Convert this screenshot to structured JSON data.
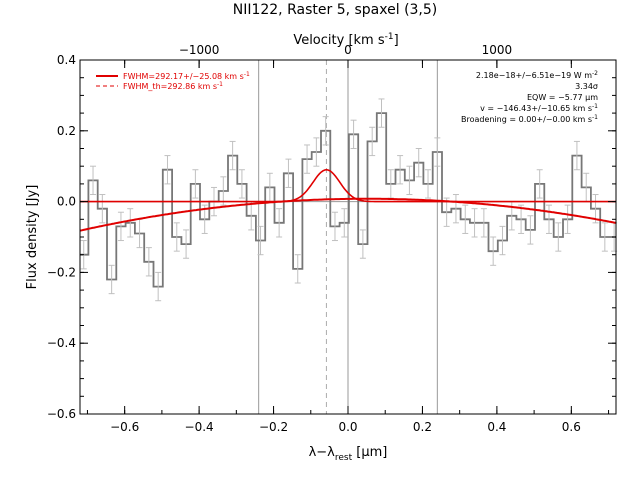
{
  "chart_data": {
    "type": "line",
    "title": "NII122, Raster 5, spaxel (3,5)",
    "xlabel_base": "λ−λ",
    "xlabel_sub": "rest",
    "xlabel_unit_open": " [",
    "xlabel_unit_mu": "μ",
    "xlabel_unit_close": "m]",
    "ylabel": "Flux density [Jy]",
    "x2label_text": "Velocity [km s",
    "x2label_sup": "-1",
    "x2label_close": "]",
    "xlim": [
      -0.72,
      0.72
    ],
    "ylim": [
      -0.6,
      0.4
    ],
    "x2lim": [
      -1800,
      1800
    ],
    "xticks": [
      -0.6,
      -0.4,
      -0.2,
      0.0,
      0.2,
      0.4,
      0.6
    ],
    "xtick_labels": [
      "−0.6",
      "−0.4",
      "−0.2",
      "0.0",
      "0.2",
      "0.4",
      "0.6"
    ],
    "yticks": [
      -0.6,
      -0.4,
      -0.2,
      0.0,
      0.2,
      0.4
    ],
    "ytick_labels": [
      "−0.6",
      "−0.4",
      "−0.2",
      "0.0",
      "0.2",
      "0.4"
    ],
    "x2ticks": [
      -1000,
      0,
      1000
    ],
    "x2tick_labels": [
      "−1000",
      "0",
      "1000"
    ],
    "legend": {
      "placement": "top-left",
      "entries": [
        {
          "text": "FWHM=292.17+/−25.08 km s",
          "sup": "-1",
          "style": "solid",
          "color": "#e00000"
        },
        {
          "text": "FWHM_th=292.86 km s",
          "sup": "-1",
          "style": "dashed",
          "color": "#e00000"
        }
      ]
    },
    "annotations": [
      {
        "text": "2.18e−18+/−6.51e−19 W m",
        "sup": "-2"
      },
      {
        "text": "3.34σ",
        "sup": ""
      },
      {
        "text": "EQW = −5.77 μm",
        "sup": ""
      },
      {
        "text": "v = −146.43+/−10.65 km s",
        "sup": "-1"
      },
      {
        "text": "Broadening = 0.00+/−0.00 km s",
        "sup": "-1"
      }
    ],
    "vlines": [
      {
        "x": -0.24,
        "style": "solid",
        "color": "#999999"
      },
      {
        "x": 0.0,
        "style": "solid",
        "color": "#999999"
      },
      {
        "x": 0.24,
        "style": "solid",
        "color": "#999999"
      },
      {
        "x": -0.058,
        "style": "dashed",
        "color": "#aaaaaa"
      }
    ],
    "hline": {
      "y": 0.0,
      "color": "#999999"
    },
    "series": [
      {
        "kind": "step",
        "color": "#777777",
        "x": [
          -0.71,
          -0.685,
          -0.66,
          -0.635,
          -0.61,
          -0.585,
          -0.56,
          -0.535,
          -0.51,
          -0.485,
          -0.46,
          -0.435,
          -0.41,
          -0.385,
          -0.36,
          -0.335,
          -0.31,
          -0.285,
          -0.26,
          -0.235,
          -0.21,
          -0.185,
          -0.16,
          -0.135,
          -0.11,
          -0.085,
          -0.06,
          -0.035,
          -0.01,
          0.015,
          0.04,
          0.065,
          0.09,
          0.115,
          0.14,
          0.165,
          0.19,
          0.215,
          0.24,
          0.265,
          0.29,
          0.315,
          0.34,
          0.365,
          0.39,
          0.415,
          0.44,
          0.465,
          0.49,
          0.515,
          0.54,
          0.565,
          0.59,
          0.615,
          0.64,
          0.665,
          0.69,
          0.715
        ],
        "y": [
          -0.15,
          0.06,
          -0.02,
          -0.22,
          -0.07,
          -0.06,
          -0.09,
          -0.17,
          -0.24,
          0.09,
          -0.1,
          -0.12,
          0.05,
          -0.05,
          0.0,
          0.03,
          0.13,
          0.05,
          -0.04,
          -0.11,
          0.04,
          -0.06,
          0.08,
          -0.19,
          0.12,
          0.14,
          0.2,
          -0.07,
          -0.06,
          0.19,
          -0.12,
          0.17,
          0.25,
          0.05,
          0.09,
          0.06,
          0.11,
          0.05,
          0.14,
          -0.03,
          -0.02,
          -0.05,
          -0.06,
          -0.06,
          -0.14,
          -0.11,
          -0.04,
          -0.05,
          -0.08,
          0.05,
          -0.05,
          -0.1,
          -0.05,
          0.13,
          0.04,
          -0.02,
          -0.1,
          -0.1
        ],
        "err": 0.04
      },
      {
        "kind": "gaussian",
        "name": "FWHM=292.17+/−25.08 km s⁻¹",
        "color": "#e00000",
        "amplitude": 0.09,
        "center": -0.058,
        "sigma": 0.036
      },
      {
        "kind": "continuum",
        "color": "#e00000",
        "peak": 0.008,
        "center": 0.05,
        "curvature": 0.152
      }
    ]
  }
}
